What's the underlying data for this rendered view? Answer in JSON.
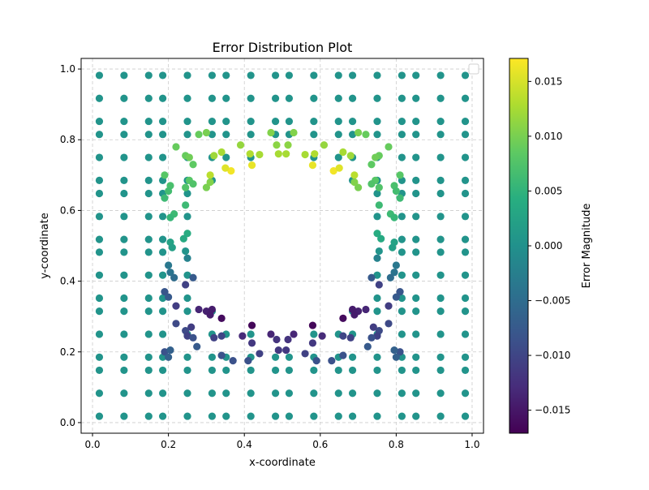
{
  "chart_data": {
    "type": "scatter",
    "title": "Error Distribution Plot",
    "xlabel": "x-coordinate",
    "ylabel": "y-coordinate",
    "xlim": [
      -0.03,
      1.03
    ],
    "ylim": [
      -0.03,
      1.03
    ],
    "xticks": [
      0.0,
      0.2,
      0.4,
      0.6,
      0.8,
      1.0
    ],
    "xtick_labels": [
      "0.0",
      "0.2",
      "0.4",
      "0.6",
      "0.8",
      "1.0"
    ],
    "yticks": [
      0.0,
      0.2,
      0.4,
      0.6,
      0.8,
      1.0
    ],
    "ytick_labels": [
      "0.0",
      "0.2",
      "0.4",
      "0.6",
      "0.8",
      "1.0"
    ],
    "grid": true,
    "grid_style": "dashed",
    "legend": "top-right (empty)",
    "colormap": "viridis",
    "colorbar": {
      "label": "Error Magnitude",
      "range": [
        -0.0171,
        0.0171
      ],
      "ticks": [
        -0.015,
        -0.01,
        -0.005,
        0.0,
        0.005,
        0.01,
        0.015
      ],
      "tick_labels": [
        "−0.015",
        "−0.010",
        "−0.005",
        "0.000",
        "0.005",
        "0.010",
        "0.015"
      ]
    },
    "grid_coordinates": [
      0.018,
      0.083,
      0.148,
      0.185,
      0.25,
      0.315,
      0.352,
      0.417,
      0.482,
      0.518,
      0.583,
      0.648,
      0.685,
      0.75,
      0.815,
      0.852,
      0.917,
      0.982
    ],
    "hole": {
      "center": [
        0.5,
        0.5
      ],
      "radius": 0.22
    },
    "ring_points": [
      [
        0.42,
        0.728,
        0.016
      ],
      [
        0.58,
        0.728,
        0.016
      ],
      [
        0.365,
        0.712,
        0.0165
      ],
      [
        0.635,
        0.712,
        0.0165
      ],
      [
        0.35,
        0.72,
        0.0155
      ],
      [
        0.65,
        0.72,
        0.0155
      ],
      [
        0.31,
        0.7,
        0.0135
      ],
      [
        0.69,
        0.7,
        0.0135
      ],
      [
        0.34,
        0.765,
        0.0125
      ],
      [
        0.66,
        0.765,
        0.0125
      ],
      [
        0.32,
        0.755,
        0.012
      ],
      [
        0.68,
        0.755,
        0.012
      ],
      [
        0.39,
        0.785,
        0.0115
      ],
      [
        0.61,
        0.785,
        0.0115
      ],
      [
        0.415,
        0.76,
        0.013
      ],
      [
        0.585,
        0.76,
        0.013
      ],
      [
        0.44,
        0.758,
        0.0125
      ],
      [
        0.56,
        0.758,
        0.0125
      ],
      [
        0.47,
        0.82,
        0.0105
      ],
      [
        0.53,
        0.82,
        0.0105
      ],
      [
        0.485,
        0.785,
        0.011
      ],
      [
        0.515,
        0.785,
        0.011
      ],
      [
        0.49,
        0.76,
        0.0125
      ],
      [
        0.51,
        0.76,
        0.0125
      ],
      [
        0.28,
        0.815,
        0.009
      ],
      [
        0.72,
        0.815,
        0.009
      ],
      [
        0.3,
        0.82,
        0.01
      ],
      [
        0.7,
        0.82,
        0.01
      ],
      [
        0.22,
        0.78,
        0.009
      ],
      [
        0.78,
        0.78,
        0.009
      ],
      [
        0.245,
        0.755,
        0.009
      ],
      [
        0.755,
        0.755,
        0.009
      ],
      [
        0.255,
        0.75,
        0.0095
      ],
      [
        0.745,
        0.75,
        0.0095
      ],
      [
        0.265,
        0.73,
        0.0085
      ],
      [
        0.735,
        0.73,
        0.0085
      ],
      [
        0.19,
        0.7,
        0.008
      ],
      [
        0.81,
        0.7,
        0.008
      ],
      [
        0.205,
        0.67,
        0.007
      ],
      [
        0.795,
        0.67,
        0.007
      ],
      [
        0.245,
        0.665,
        0.0075
      ],
      [
        0.755,
        0.665,
        0.0075
      ],
      [
        0.255,
        0.685,
        0.008
      ],
      [
        0.745,
        0.685,
        0.008
      ],
      [
        0.265,
        0.675,
        0.0075
      ],
      [
        0.735,
        0.675,
        0.0075
      ],
      [
        0.3,
        0.665,
        0.01
      ],
      [
        0.7,
        0.665,
        0.01
      ],
      [
        0.31,
        0.68,
        0.0105
      ],
      [
        0.69,
        0.68,
        0.0105
      ],
      [
        0.2,
        0.655,
        0.0065
      ],
      [
        0.8,
        0.655,
        0.0065
      ],
      [
        0.19,
        0.635,
        0.006
      ],
      [
        0.81,
        0.635,
        0.006
      ],
      [
        0.245,
        0.615,
        0.006
      ],
      [
        0.755,
        0.615,
        0.006
      ],
      [
        0.215,
        0.59,
        0.006
      ],
      [
        0.785,
        0.59,
        0.006
      ],
      [
        0.205,
        0.58,
        0.0055
      ],
      [
        0.795,
        0.58,
        0.0055
      ],
      [
        0.25,
        0.535,
        0.004
      ],
      [
        0.75,
        0.535,
        0.004
      ],
      [
        0.24,
        0.52,
        0.0035
      ],
      [
        0.76,
        0.52,
        0.0035
      ],
      [
        0.205,
        0.51,
        0.0025
      ],
      [
        0.795,
        0.51,
        0.0025
      ],
      [
        0.21,
        0.495,
        0.002
      ],
      [
        0.79,
        0.495,
        0.002
      ],
      [
        0.245,
        0.485,
        0.0005
      ],
      [
        0.755,
        0.485,
        0.0005
      ],
      [
        0.25,
        0.465,
        -0.002
      ],
      [
        0.75,
        0.465,
        -0.002
      ],
      [
        0.2,
        0.445,
        -0.0035
      ],
      [
        0.8,
        0.445,
        -0.0035
      ],
      [
        0.205,
        0.425,
        -0.004
      ],
      [
        0.795,
        0.425,
        -0.004
      ],
      [
        0.215,
        0.41,
        -0.005
      ],
      [
        0.785,
        0.41,
        -0.005
      ],
      [
        0.265,
        0.41,
        -0.0075
      ],
      [
        0.735,
        0.41,
        -0.0075
      ],
      [
        0.19,
        0.37,
        -0.008
      ],
      [
        0.81,
        0.37,
        -0.008
      ],
      [
        0.2,
        0.355,
        -0.0075
      ],
      [
        0.8,
        0.355,
        -0.0075
      ],
      [
        0.245,
        0.39,
        -0.0105
      ],
      [
        0.755,
        0.39,
        -0.0105
      ],
      [
        0.22,
        0.33,
        -0.011
      ],
      [
        0.78,
        0.33,
        -0.011
      ],
      [
        0.28,
        0.32,
        -0.0135
      ],
      [
        0.72,
        0.32,
        -0.0135
      ],
      [
        0.3,
        0.315,
        -0.014
      ],
      [
        0.7,
        0.315,
        -0.014
      ],
      [
        0.31,
        0.305,
        -0.0145
      ],
      [
        0.69,
        0.305,
        -0.0145
      ],
      [
        0.315,
        0.32,
        -0.0145
      ],
      [
        0.685,
        0.32,
        -0.0145
      ],
      [
        0.34,
        0.295,
        -0.016
      ],
      [
        0.66,
        0.295,
        -0.016
      ],
      [
        0.42,
        0.275,
        -0.0165
      ],
      [
        0.58,
        0.275,
        -0.0165
      ],
      [
        0.395,
        0.245,
        -0.013
      ],
      [
        0.605,
        0.245,
        -0.013
      ],
      [
        0.47,
        0.25,
        -0.0135
      ],
      [
        0.53,
        0.25,
        -0.0135
      ],
      [
        0.485,
        0.235,
        -0.012
      ],
      [
        0.515,
        0.235,
        -0.012
      ],
      [
        0.26,
        0.27,
        -0.011
      ],
      [
        0.74,
        0.27,
        -0.011
      ],
      [
        0.22,
        0.28,
        -0.0095
      ],
      [
        0.78,
        0.28,
        -0.0095
      ],
      [
        0.245,
        0.26,
        -0.0095
      ],
      [
        0.755,
        0.26,
        -0.0095
      ],
      [
        0.25,
        0.245,
        -0.0105
      ],
      [
        0.75,
        0.245,
        -0.0105
      ],
      [
        0.265,
        0.24,
        -0.0085
      ],
      [
        0.735,
        0.24,
        -0.0085
      ],
      [
        0.32,
        0.24,
        -0.0105
      ],
      [
        0.68,
        0.24,
        -0.0105
      ],
      [
        0.34,
        0.245,
        -0.01
      ],
      [
        0.66,
        0.245,
        -0.01
      ],
      [
        0.42,
        0.225,
        -0.0115
      ],
      [
        0.58,
        0.225,
        -0.0115
      ],
      [
        0.44,
        0.195,
        -0.0105
      ],
      [
        0.56,
        0.195,
        -0.0105
      ],
      [
        0.49,
        0.205,
        -0.0115
      ],
      [
        0.51,
        0.205,
        -0.0115
      ],
      [
        0.19,
        0.2,
        -0.0085
      ],
      [
        0.81,
        0.2,
        -0.0085
      ],
      [
        0.205,
        0.205,
        -0.0065
      ],
      [
        0.795,
        0.205,
        -0.0065
      ],
      [
        0.2,
        0.185,
        -0.0065
      ],
      [
        0.8,
        0.185,
        -0.0065
      ],
      [
        0.275,
        0.215,
        -0.0075
      ],
      [
        0.725,
        0.215,
        -0.0075
      ],
      [
        0.34,
        0.19,
        -0.0085
      ],
      [
        0.66,
        0.19,
        -0.0085
      ],
      [
        0.37,
        0.175,
        -0.0085
      ],
      [
        0.63,
        0.175,
        -0.0085
      ],
      [
        0.41,
        0.175,
        -0.0085
      ],
      [
        0.59,
        0.175,
        -0.0085
      ]
    ]
  }
}
